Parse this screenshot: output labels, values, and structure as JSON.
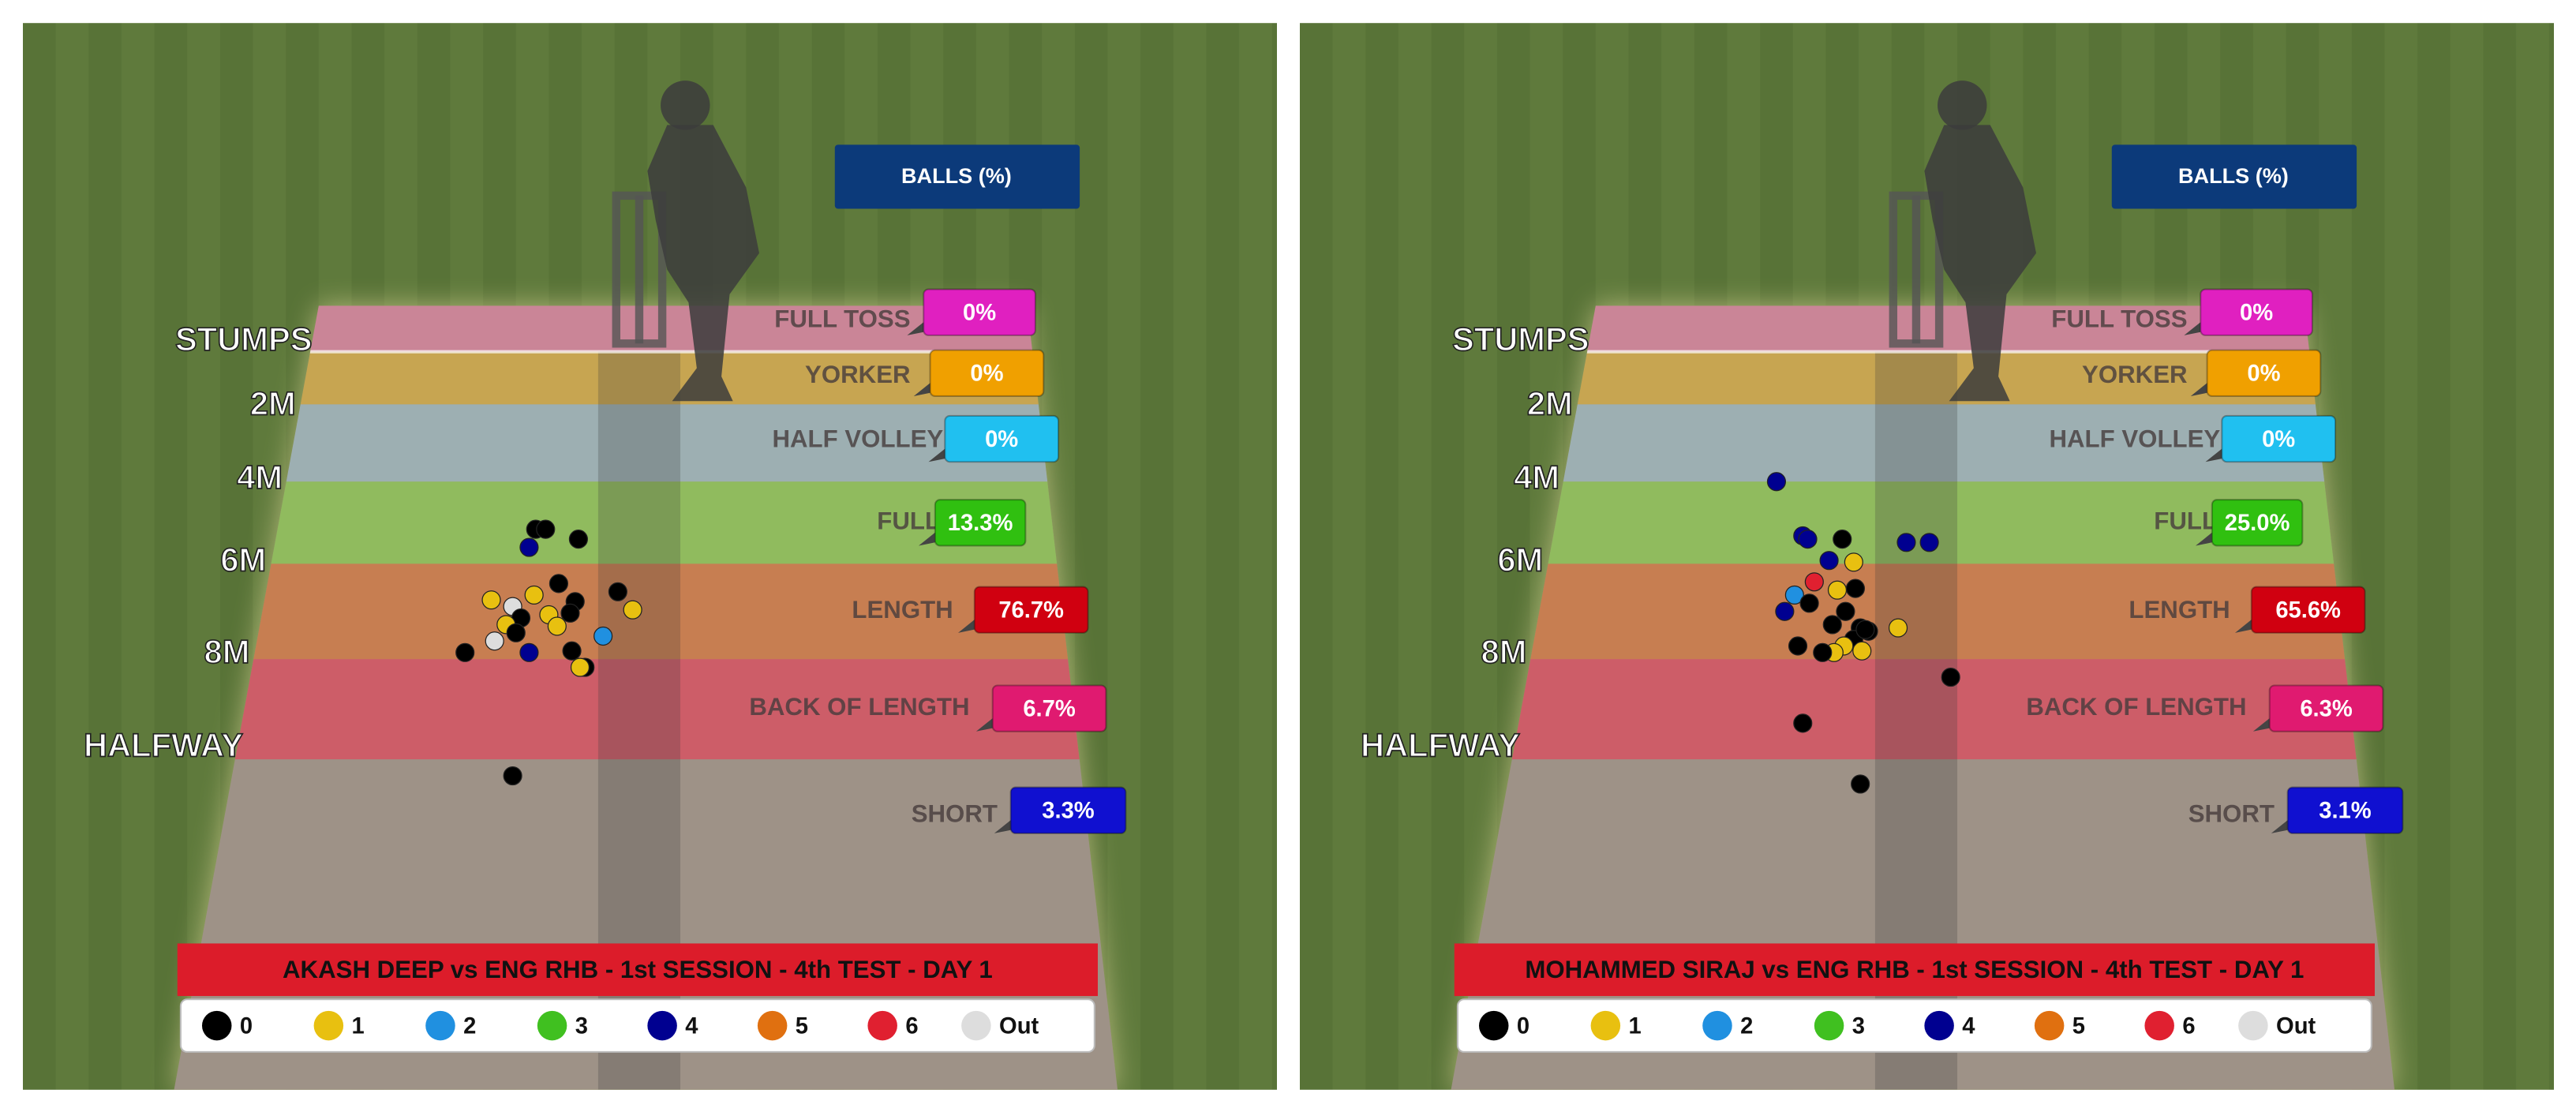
{
  "panels": [
    {
      "header": "BALLS (%)",
      "distance_labels": [
        "STUMPS",
        "2M",
        "4M",
        "6M",
        "8M",
        "HALFWAY"
      ],
      "zones": [
        {
          "name": "FULL TOSS",
          "percent": "0%"
        },
        {
          "name": "YORKER",
          "percent": "0%"
        },
        {
          "name": "HALF VOLLEY",
          "percent": "0%"
        },
        {
          "name": "FULL",
          "percent": "13.3%"
        },
        {
          "name": "LENGTH",
          "percent": "76.7%"
        },
        {
          "name": "BACK OF LENGTH",
          "percent": "6.7%"
        },
        {
          "name": "SHORT",
          "percent": "3.3%"
        }
      ],
      "title": "AKASH DEEP vs ENG RHB - 1st SESSION - 4th TEST - DAY 1",
      "legend": [
        {
          "label": "0",
          "color": "#000000"
        },
        {
          "label": "1",
          "color": "#e8c010"
        },
        {
          "label": "2",
          "color": "#2090e0"
        },
        {
          "label": "3",
          "color": "#40c020"
        },
        {
          "label": "4",
          "color": "#000090"
        },
        {
          "label": "5",
          "color": "#e07010"
        },
        {
          "label": "6",
          "color": "#e02030"
        },
        {
          "label": "Out",
          "color": "#dddddd"
        }
      ]
    },
    {
      "header": "BALLS (%)",
      "distance_labels": [
        "STUMPS",
        "2M",
        "4M",
        "6M",
        "8M",
        "HALFWAY"
      ],
      "zones": [
        {
          "name": "FULL TOSS",
          "percent": "0%"
        },
        {
          "name": "YORKER",
          "percent": "0%"
        },
        {
          "name": "HALF VOLLEY",
          "percent": "0%"
        },
        {
          "name": "FULL",
          "percent": "25.0%"
        },
        {
          "name": "LENGTH",
          "percent": "65.6%"
        },
        {
          "name": "BACK OF LENGTH",
          "percent": "6.3%"
        },
        {
          "name": "SHORT",
          "percent": "3.1%"
        }
      ],
      "title": "MOHAMMED SIRAJ vs ENG RHB - 1st SESSION - 4th TEST - DAY 1",
      "legend": [
        {
          "label": "0",
          "color": "#000000"
        },
        {
          "label": "1",
          "color": "#e8c010"
        },
        {
          "label": "2",
          "color": "#2090e0"
        },
        {
          "label": "3",
          "color": "#40c020"
        },
        {
          "label": "4",
          "color": "#000090"
        },
        {
          "label": "5",
          "color": "#e07010"
        },
        {
          "label": "6",
          "color": "#e02030"
        },
        {
          "label": "Out",
          "color": "#dddddd"
        }
      ]
    }
  ]
}
